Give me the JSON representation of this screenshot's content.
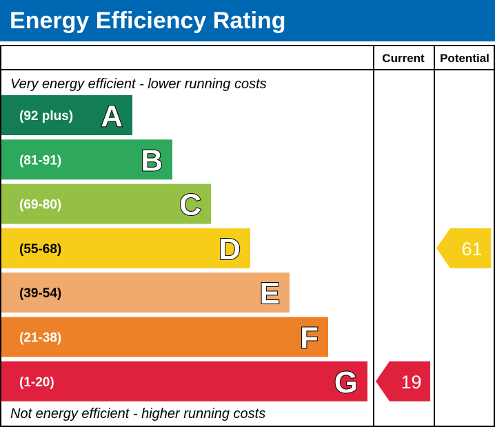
{
  "title": "Energy Efficiency Rating",
  "columns": {
    "current": "Current",
    "potential": "Potential"
  },
  "top_caption": "Very energy efficient - lower running costs",
  "bottom_caption": "Not energy efficient - higher running costs",
  "chart_data": {
    "type": "bar",
    "title": "Energy Efficiency Rating",
    "bands": [
      {
        "letter": "A",
        "range": "(92 plus)",
        "color": "#137e55"
      },
      {
        "letter": "B",
        "range": "(81-91)",
        "color": "#2ea85c"
      },
      {
        "letter": "C",
        "range": "(69-80)",
        "color": "#94c145"
      },
      {
        "letter": "D",
        "range": "(55-68)",
        "color": "#f6cd19"
      },
      {
        "letter": "E",
        "range": "(39-54)",
        "color": "#f1aa6d"
      },
      {
        "letter": "F",
        "range": "(21-38)",
        "color": "#ec8129"
      },
      {
        "letter": "G",
        "range": "(1-20)",
        "color": "#e0213d"
      }
    ],
    "current": {
      "value": 19,
      "band": "G",
      "color": "#e0213d"
    },
    "potential": {
      "value": 61,
      "band": "D",
      "color": "#f6cd19"
    }
  }
}
